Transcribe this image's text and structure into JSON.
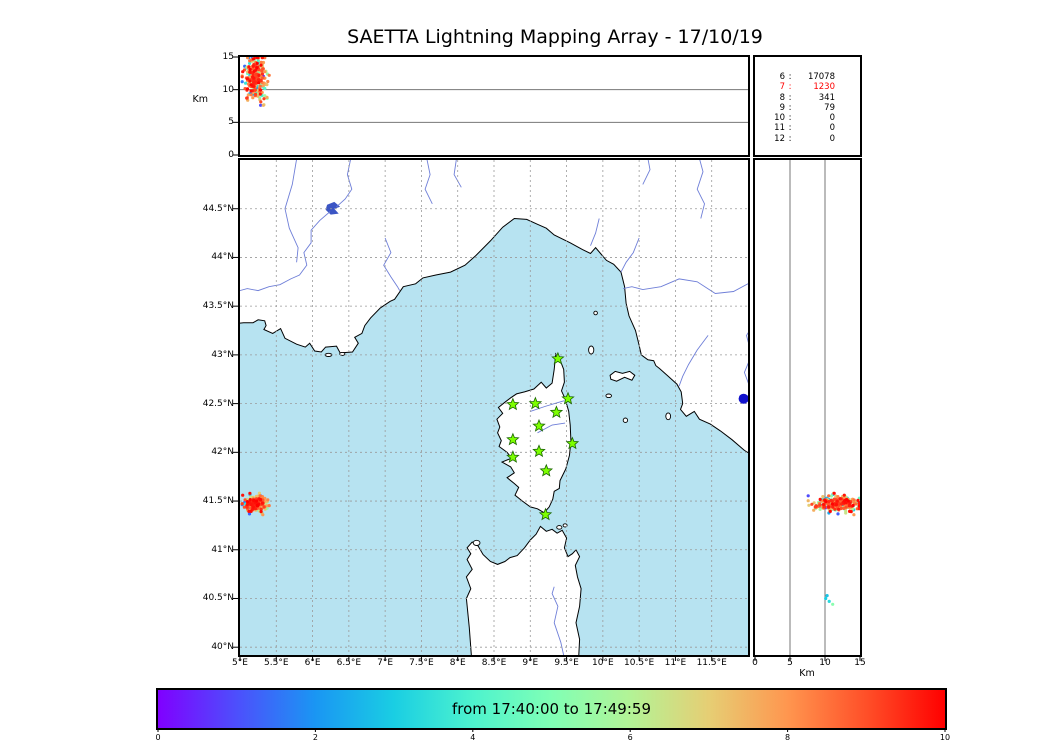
{
  "title": "SAETTA Lightning Mapping Array - 17/10/19",
  "colors": {
    "sea": "#b7e3f1",
    "land": "#ffffff",
    "coast": "#000000",
    "river": "#6f7fd8",
    "lake": "#3b55c4",
    "grid": "#9a9a9a",
    "panel_grid": "#777777",
    "station_star_fill": "#7dff00",
    "station_star_edge": "#1a6600",
    "highlight_count": "#ff0000",
    "large_marker": "#1111cc"
  },
  "altitude_axis": {
    "label": "Km",
    "ticks": [
      0,
      5,
      10,
      15
    ],
    "range_km": [
      0,
      15
    ]
  },
  "bottom_axis": {
    "label": "Km",
    "ticks": [
      0,
      5,
      10,
      15
    ],
    "range_km": [
      0,
      15
    ]
  },
  "station_counts": {
    "rows": [
      {
        "stations": "6",
        "count": "17078",
        "highlight": false
      },
      {
        "stations": "7",
        "count": "1230",
        "highlight": true
      },
      {
        "stations": "8",
        "count": "341",
        "highlight": false
      },
      {
        "stations": "9",
        "count": "79",
        "highlight": false
      },
      {
        "stations": "10",
        "count": "0",
        "highlight": false
      },
      {
        "stations": "11",
        "count": "0",
        "highlight": false
      },
      {
        "stations": "12",
        "count": "0",
        "highlight": false
      }
    ]
  },
  "map_axes": {
    "lon_range": [
      5.0,
      12.0
    ],
    "lat_range": [
      39.92,
      45.0
    ],
    "lon_ticks": [
      {
        "value": 5,
        "label": "5°E"
      },
      {
        "value": 5.5,
        "label": "5.5°E"
      },
      {
        "value": 6,
        "label": "6°E"
      },
      {
        "value": 6.5,
        "label": "6.5°E"
      },
      {
        "value": 7,
        "label": "7°E"
      },
      {
        "value": 7.5,
        "label": "7.5°E"
      },
      {
        "value": 8,
        "label": "8°E"
      },
      {
        "value": 8.5,
        "label": "8.5°E"
      },
      {
        "value": 9,
        "label": "9°E"
      },
      {
        "value": 9.5,
        "label": "9.5°E"
      },
      {
        "value": 10,
        "label": "10°E"
      },
      {
        "value": 10.5,
        "label": "10.5°E"
      },
      {
        "value": 11,
        "label": "11°E"
      },
      {
        "value": 11.5,
        "label": "11.5°E"
      }
    ],
    "lat_ticks": [
      {
        "value": 40,
        "label": "40°N"
      },
      {
        "value": 40.5,
        "label": "40.5°N"
      },
      {
        "value": 41,
        "label": "41°N"
      },
      {
        "value": 41.5,
        "label": "41.5°N"
      },
      {
        "value": 42,
        "label": "42°N"
      },
      {
        "value": 42.5,
        "label": "42.5°N"
      },
      {
        "value": 43,
        "label": "43°N"
      },
      {
        "value": 43.5,
        "label": "43.5°N"
      },
      {
        "value": 44,
        "label": "44°N"
      },
      {
        "value": 44.5,
        "label": "44.5°N"
      }
    ]
  },
  "colorbar": {
    "label": "from 17:40:00 to 17:49:59",
    "ticks": [
      0,
      2,
      4,
      6,
      8,
      10
    ],
    "range_minutes": [
      0,
      10
    ],
    "gradient": [
      "#8000ff",
      "#4d4ffc",
      "#1a96f3",
      "#1acee3",
      "#4df3ce",
      "#80ffb5",
      "#b3f396",
      "#e6ce74",
      "#ff964f",
      "#ff4f28",
      "#ff0000"
    ]
  },
  "chart_data": {
    "type": "scatter",
    "title": "SAETTA Lightning Mapping Array - 17/10/19",
    "panels": [
      "top: altitude (0-15 km) vs longitude (5-12 E)",
      "center: map, longitude 5-12 E vs latitude 40-45 N (Corsica region)",
      "right: altitude (0-15 km) vs latitude (40-45 N)"
    ],
    "time_window": {
      "start": "17:40:00",
      "end": "17:49:59",
      "colorbar_minutes": [
        0,
        10
      ]
    },
    "source_counts_by_min_stations": {
      "6": 17078,
      "7": 1230,
      "8": 341,
      "9": 79,
      "10": 0,
      "11": 0,
      "12": 0
    },
    "stations_lonlat": [
      [
        9.38,
        42.96
      ],
      [
        8.76,
        42.49
      ],
      [
        9.07,
        42.5
      ],
      [
        9.36,
        42.41
      ],
      [
        9.52,
        42.55
      ],
      [
        9.12,
        42.27
      ],
      [
        8.76,
        42.13
      ],
      [
        9.58,
        42.09
      ],
      [
        8.76,
        41.95
      ],
      [
        9.12,
        42.01
      ],
      [
        9.22,
        41.81
      ],
      [
        9.21,
        41.36
      ]
    ],
    "flash_cluster": {
      "center_lon": 5.22,
      "center_lat": 41.47,
      "sigma_lon": 0.07,
      "sigma_lat": 0.038,
      "lon_range": [
        5.03,
        5.45
      ],
      "lat_range": [
        41.36,
        41.58
      ],
      "alt_center_km": 11.8,
      "alt_sigma_km": 1.6,
      "alt_range_km": [
        7.6,
        14.9
      ],
      "n_points": 300,
      "time_profile": "mostly late (orange-red) with scattered earlier blue/green points"
    },
    "extra_points": {
      "map_large_dot": {
        "lon": 11.94,
        "lat": 42.55,
        "color": "#1111cc",
        "radius_px": 5
      },
      "alt_lat_strays": [
        {
          "lat": 40.5,
          "alt_km": 10.1,
          "t": 0.3
        },
        {
          "lat": 40.47,
          "alt_km": 10.6,
          "t": 0.33
        },
        {
          "lat": 40.53,
          "alt_km": 10.3,
          "t": 0.28
        },
        {
          "lat": 40.44,
          "alt_km": 11.1,
          "t": 0.52
        }
      ]
    }
  }
}
